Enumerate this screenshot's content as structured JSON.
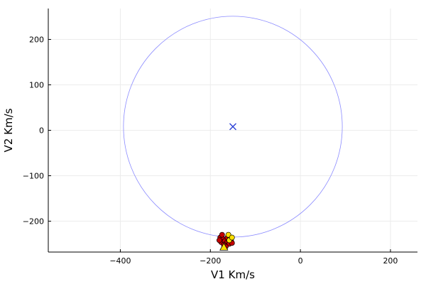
{
  "chart_data": {
    "type": "scatter",
    "title": "",
    "xlabel": "V1 Km/s",
    "ylabel": "V2 Km/s",
    "xlim": [
      -560,
      260
    ],
    "ylim": [
      -268,
      268
    ],
    "xticks": [
      -400,
      -200,
      0,
      200
    ],
    "yticks": [
      -200,
      -100,
      0,
      100,
      200
    ],
    "xtick_labels": [
      "−400",
      "−200",
      "0",
      "200"
    ],
    "ytick_labels": [
      "−200",
      "−100",
      "0",
      "100",
      "200"
    ],
    "grid": true,
    "legend": "none",
    "colors": {
      "circle": "#8b8bff",
      "center": "#2a3fd6",
      "red_points": "#c40000",
      "yellow_points": "#ffe000",
      "marker_edge": "#000000",
      "grid": "#ececec",
      "axis": "#000000"
    },
    "circle": {
      "center": [
        -150,
        8
      ],
      "radius": 243
    },
    "center_marker": {
      "x": -150,
      "y": 8,
      "marker": "x"
    },
    "series": [
      {
        "marker": "circle",
        "color": "red",
        "points": [
          [
            -178,
            -236
          ],
          [
            -172,
            -240
          ],
          [
            -176,
            -246
          ],
          [
            -168,
            -244
          ],
          [
            -164,
            -248
          ],
          [
            -160,
            -240
          ],
          [
            -158,
            -250
          ],
          [
            -170,
            -252
          ],
          [
            -162,
            -236
          ],
          [
            -154,
            -244
          ],
          [
            -166,
            -256
          ],
          [
            -174,
            -230
          ],
          [
            -156,
            -236
          ],
          [
            -180,
            -242
          ],
          [
            -152,
            -248
          ]
        ]
      },
      {
        "marker": "circle",
        "color": "yellow",
        "points": [
          [
            -160,
            -230
          ],
          [
            -158,
            -242
          ],
          [
            -152,
            -236
          ]
        ]
      },
      {
        "marker": "triangle",
        "color": "yellow",
        "points": [
          [
            -170,
            -257
          ]
        ]
      }
    ]
  }
}
